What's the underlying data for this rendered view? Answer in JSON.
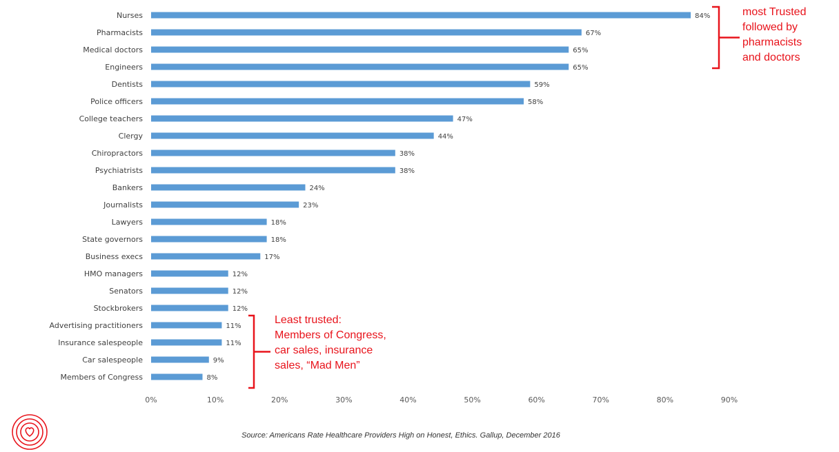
{
  "chart_data": {
    "type": "bar",
    "orientation": "horizontal",
    "categories": [
      "Nurses",
      "Pharmacists",
      "Medical doctors",
      "Engineers",
      "Dentists",
      "Police officers",
      "College teachers",
      "Clergy",
      "Chiropractors",
      "Psychiatrists",
      "Bankers",
      "Journalists",
      "Lawyers",
      "State governors",
      "Business execs",
      "HMO managers",
      "Senators",
      "Stockbrokers",
      "Advertising practitioners",
      "Insurance salespeople",
      "Car salespeople",
      "Members of Congress"
    ],
    "values": [
      84,
      67,
      65,
      65,
      59,
      58,
      47,
      44,
      38,
      38,
      24,
      23,
      18,
      18,
      17,
      12,
      12,
      12,
      11,
      11,
      9,
      8
    ],
    "value_labels": [
      "84%",
      "67%",
      "65%",
      "65%",
      "59%",
      "58%",
      "47%",
      "44%",
      "38%",
      "38%",
      "24%",
      "23%",
      "18%",
      "18%",
      "17%",
      "12%",
      "12%",
      "12%",
      "11%",
      "11%",
      "9%",
      "8%"
    ],
    "xlim": [
      0,
      90
    ],
    "xticks": [
      0,
      10,
      20,
      30,
      40,
      50,
      60,
      70,
      80,
      90
    ],
    "xtick_labels": [
      "0%",
      "10%",
      "20%",
      "30%",
      "40%",
      "50%",
      "60%",
      "70%",
      "80%",
      "90%"
    ],
    "grid": false,
    "bar_color": "#5b9bd5",
    "title": "",
    "xlabel": "",
    "ylabel": ""
  },
  "annotations": {
    "top": {
      "lines": [
        "most Trusted",
        "followed by",
        "pharmacists",
        "and doctors"
      ],
      "color": "#e8131b",
      "brackets": [
        "Nurses",
        "Engineers"
      ]
    },
    "bottom": {
      "lines": [
        "Least trusted:",
        "Members of Congress,",
        "car sales, insurance",
        "sales, “Mad Men”"
      ],
      "color": "#e8131b",
      "brackets": [
        "Advertising practitioners",
        "Members of Congress"
      ]
    }
  },
  "source": "Source: Americans Rate Healthcare Providers High on Honest, Ethics. Gallup, December 2016",
  "logo": {
    "icon": "heart-concentric-circles-icon",
    "color": "#e8131b"
  }
}
